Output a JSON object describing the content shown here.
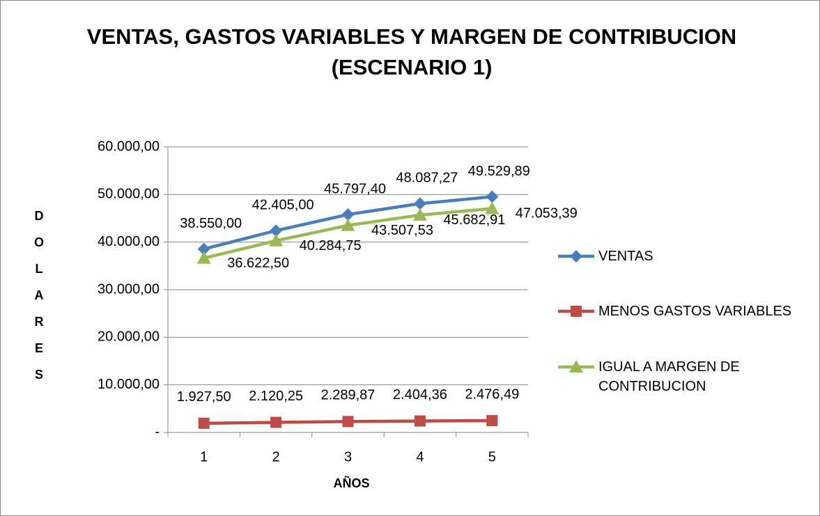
{
  "chart_data": {
    "type": "line",
    "title": "VENTAS, GASTOS VARIABLES Y MARGEN DE CONTRIBUCION (ESCENARIO 1)",
    "x_label": "AÑOS",
    "y_label": "DOLARES",
    "categories": [
      "1",
      "2",
      "3",
      "4",
      "5"
    ],
    "ylim": [
      0,
      60000
    ],
    "yticks": [
      {
        "value": 0,
        "label": "-"
      },
      {
        "value": 10000,
        "label": "10.000,00"
      },
      {
        "value": 20000,
        "label": "20.000,00"
      },
      {
        "value": 30000,
        "label": "30.000,00"
      },
      {
        "value": 40000,
        "label": "40.000,00"
      },
      {
        "value": 50000,
        "label": "50.000,00"
      },
      {
        "value": 60000,
        "label": "60.000,00"
      }
    ],
    "grid": true,
    "legend": "right",
    "series": [
      {
        "name": "VENTAS",
        "color": "#4a7ebb",
        "marker": "diamond",
        "values": [
          38550.0,
          42405.0,
          45797.4,
          48087.27,
          49529.89
        ],
        "value_labels": [
          "38.550,00",
          "42.405,00",
          "45.797,40",
          "48.087,27",
          "49.529,89"
        ]
      },
      {
        "name": "MENOS GASTOS VARIABLES",
        "color": "#be4b48",
        "marker": "square",
        "values": [
          1927.5,
          2120.25,
          2289.87,
          2404.36,
          2476.49
        ],
        "value_labels": [
          "1.927,50",
          "2.120,25",
          "2.289,87",
          "2.404,36",
          "2.476,49"
        ]
      },
      {
        "name": "IGUAL A MARGEN DE CONTRIBUCION",
        "color": "#98b954",
        "marker": "triangle",
        "values": [
          36622.5,
          40284.75,
          43507.53,
          45682.91,
          47053.39
        ],
        "value_labels": [
          "36.622,50",
          "40.284,75",
          "43.507,53",
          "45.682,91",
          "47.053,39"
        ]
      }
    ]
  }
}
